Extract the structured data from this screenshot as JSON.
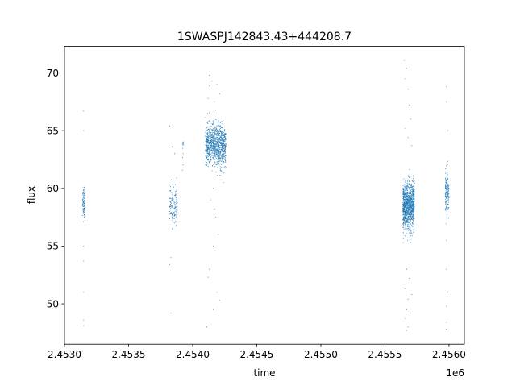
{
  "chart_data": {
    "type": "scatter",
    "title": "1SWASPJ142843.43+444208.7",
    "xlabel": "time",
    "ylabel": "flux",
    "x_offset_label": "1e6",
    "xlim": [
      2.453,
      2.45612
    ],
    "ylim": [
      46.5,
      72.3
    ],
    "x_unit_multiplier": 1000000,
    "x_ticks": [
      2.453,
      2.4535,
      2.454,
      2.4545,
      2.455,
      2.4555,
      2.456
    ],
    "x_tick_labels": [
      "2.4530",
      "2.4535",
      "2.4540",
      "2.4545",
      "2.4550",
      "2.4555",
      "2.4560"
    ],
    "y_ticks": [
      50,
      55,
      60,
      65,
      70
    ],
    "y_tick_labels": [
      "50",
      "55",
      "60",
      "65",
      "70"
    ],
    "grid": false,
    "marker_color": "#1f77b4",
    "clusters": [
      {
        "x_range": [
          2.45314,
          2.45316
        ],
        "y_center": 58.8,
        "y_spread": 0.7,
        "count": 90,
        "outliers": [
          [
            2.45315,
            66.7
          ],
          [
            2.45315,
            65.0
          ],
          [
            2.45315,
            55.0
          ],
          [
            2.45315,
            53.7
          ],
          [
            2.45315,
            51.0
          ],
          [
            2.45315,
            48.6
          ],
          [
            2.45315,
            48.1
          ]
        ]
      },
      {
        "x_range": [
          2.45382,
          2.45388
        ],
        "y_center": 58.6,
        "y_spread": 0.8,
        "count": 140,
        "outliers": [
          [
            2.45382,
            65.4
          ],
          [
            2.45384,
            63.6
          ],
          [
            2.45386,
            63.0
          ],
          [
            2.45383,
            54.0
          ],
          [
            2.45382,
            53.4
          ],
          [
            2.45383,
            49.2
          ],
          [
            2.45386,
            57.0
          ],
          [
            2.45384,
            56.5
          ]
        ]
      },
      {
        "x_range": [
          2.45392,
          2.45393
        ],
        "y_center": 63.5,
        "y_spread": 0.6,
        "count": 12,
        "outliers": []
      },
      {
        "x_range": [
          2.4541,
          2.45426
        ],
        "y_center": 63.7,
        "y_spread": 0.9,
        "count": 950,
        "outliers": [
          [
            2.45413,
            69.8
          ],
          [
            2.45413,
            68.9
          ],
          [
            2.45415,
            69.3
          ],
          [
            2.45412,
            67.8
          ],
          [
            2.45417,
            67.5
          ],
          [
            2.45419,
            69.0
          ],
          [
            2.45421,
            68.2
          ],
          [
            2.45418,
            66.8
          ],
          [
            2.45416,
            60.0
          ],
          [
            2.45414,
            59.0
          ],
          [
            2.45418,
            57.5
          ],
          [
            2.4542,
            56.0
          ],
          [
            2.45416,
            55.0
          ],
          [
            2.45413,
            53.0
          ],
          [
            2.45412,
            52.3
          ],
          [
            2.45419,
            51.0
          ],
          [
            2.45421,
            50.3
          ],
          [
            2.45416,
            49.5
          ],
          [
            2.45411,
            48.0
          ],
          [
            2.45424,
            60.5
          ],
          [
            2.45417,
            58.2
          ]
        ]
      },
      {
        "x_range": [
          2.45564,
          2.45573
        ],
        "y_center": 58.5,
        "y_spread": 1.0,
        "count": 1100,
        "outliers": [
          [
            2.45565,
            71.1
          ],
          [
            2.45567,
            70.4
          ],
          [
            2.45566,
            69.5
          ],
          [
            2.45568,
            68.6
          ],
          [
            2.45569,
            67.2
          ],
          [
            2.4557,
            66.0
          ],
          [
            2.45566,
            65.2
          ],
          [
            2.45568,
            64.4
          ],
          [
            2.45571,
            63.7
          ],
          [
            2.45567,
            53.0
          ],
          [
            2.45569,
            52.2
          ],
          [
            2.45566,
            51.3
          ],
          [
            2.45568,
            50.4
          ],
          [
            2.45567,
            49.5
          ],
          [
            2.45566,
            48.7
          ],
          [
            2.45568,
            48.0
          ],
          [
            2.45567,
            47.7
          ],
          [
            2.4557,
            49.2
          ],
          [
            2.45571,
            50.8
          ]
        ]
      },
      {
        "x_range": [
          2.45597,
          2.456
        ],
        "y_center": 59.8,
        "y_spread": 0.9,
        "count": 160,
        "outliers": [
          [
            2.45598,
            68.8
          ],
          [
            2.45598,
            67.5
          ],
          [
            2.45599,
            65.0
          ],
          [
            2.45598,
            55.5
          ],
          [
            2.45598,
            53.0
          ],
          [
            2.45599,
            51.0
          ],
          [
            2.45598,
            49.8
          ],
          [
            2.45598,
            48.4
          ],
          [
            2.45598,
            47.8
          ]
        ]
      }
    ]
  }
}
